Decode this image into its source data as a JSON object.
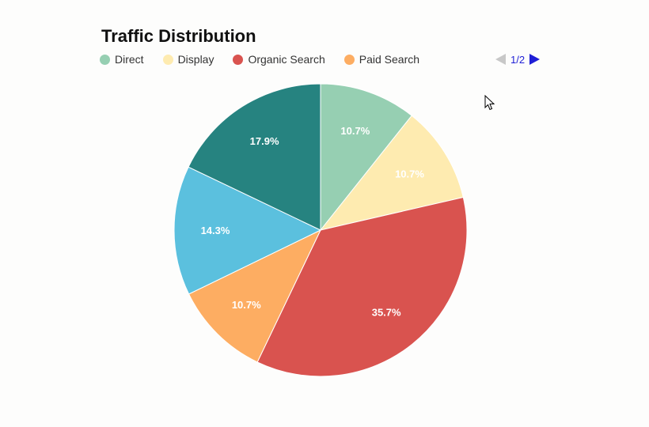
{
  "chart_data": {
    "type": "pie",
    "title": "Traffic Distribution",
    "legend_position": "top-left",
    "legend_page": "1/2",
    "start_angle_deg": 0,
    "direction": "clockwise",
    "slices": [
      {
        "name": "Direct",
        "value": 10.7,
        "label": "10.7%",
        "color": "#96cfb2"
      },
      {
        "name": "Display",
        "value": 10.7,
        "label": "10.7%",
        "color": "#feebb0"
      },
      {
        "name": "Organic Search",
        "value": 35.7,
        "label": "35.7%",
        "color": "#d9534f"
      },
      {
        "name": "Paid Search",
        "value": 10.7,
        "label": "10.7%",
        "color": "#fdad62"
      },
      {
        "name": "",
        "value": 14.3,
        "label": "14.3%",
        "color": "#5bc0de"
      },
      {
        "name": "",
        "value": 17.9,
        "label": "17.9%",
        "color": "#268380"
      }
    ]
  },
  "legend": [
    {
      "label": "Direct",
      "color": "#96cfb2"
    },
    {
      "label": "Display",
      "color": "#feebb0"
    },
    {
      "label": "Organic Search",
      "color": "#d9534f"
    },
    {
      "label": "Paid Search",
      "color": "#fdad62"
    }
  ],
  "pager": {
    "text": "1/2"
  }
}
